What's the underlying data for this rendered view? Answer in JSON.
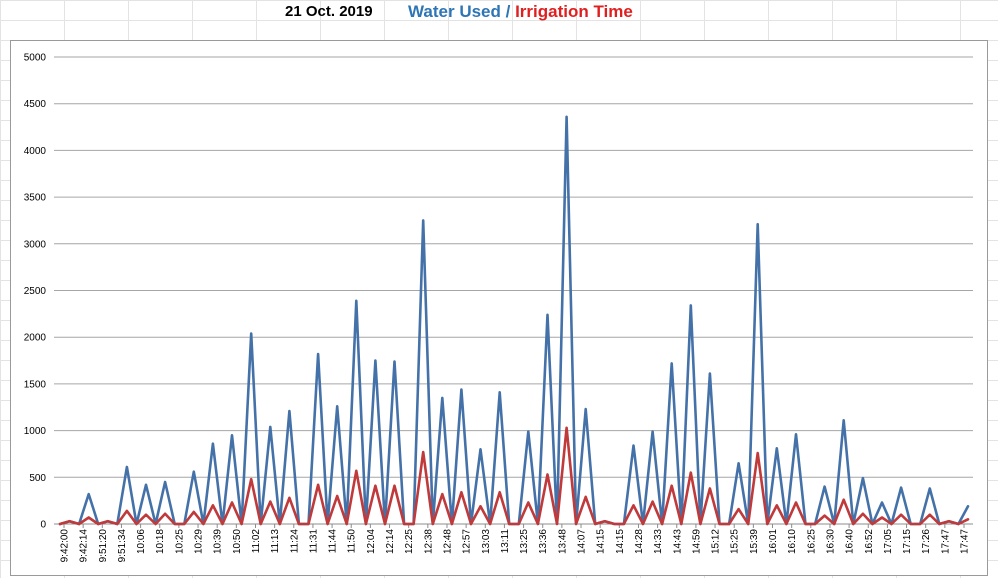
{
  "header": {
    "date": "21 Oct. 2019",
    "legend_water": "Water Used",
    "legend_sep": " / ",
    "legend_irrigation": "Irrigation Time"
  },
  "colors": {
    "water": "#4472a8",
    "irrigation": "#c0393b",
    "grid": "#a6a6a6"
  },
  "chart_data": {
    "type": "line",
    "title": "21 Oct. 2019",
    "xlabel": "",
    "ylabel": "",
    "ylim": [
      0,
      5000
    ],
    "yticks": [
      0,
      500,
      1000,
      1500,
      2000,
      2500,
      3000,
      3500,
      4000,
      4500,
      5000
    ],
    "grid": true,
    "legend": "top",
    "x_tick_labels": [
      "9:42:00",
      "9:42:14",
      "9:51:20",
      "9:51:34",
      "10:06",
      "10:18",
      "10:25",
      "10:29",
      "10:39",
      "10:50",
      "11:02",
      "11:13",
      "11:24",
      "11:31",
      "11:44",
      "11:50",
      "12:04",
      "12:14",
      "12:25",
      "12:38",
      "12:48",
      "12:57",
      "13:03",
      "13:11",
      "13:25",
      "13:36",
      "13:48",
      "14:07",
      "14:15",
      "14:15",
      "14:28",
      "14:33",
      "14:43",
      "14:59",
      "15:12",
      "15:25",
      "15:39",
      "16:01",
      "16:10",
      "16:25",
      "16:30",
      "16:40",
      "16:52",
      "17:05",
      "17:15",
      "17:26",
      "17:47",
      "17:47"
    ],
    "series": [
      {
        "name": "Water Used",
        "values": [
          0,
          30,
          0,
          320,
          0,
          30,
          0,
          610,
          0,
          420,
          0,
          450,
          0,
          0,
          560,
          0,
          860,
          0,
          950,
          0,
          2040,
          0,
          1040,
          0,
          1210,
          0,
          0,
          1820,
          0,
          1260,
          0,
          2390,
          0,
          1750,
          0,
          1740,
          0,
          0,
          3250,
          0,
          1350,
          0,
          1440,
          0,
          800,
          0,
          1410,
          0,
          0,
          990,
          0,
          2240,
          0,
          4360,
          0,
          1230,
          0,
          30,
          0,
          0,
          840,
          0,
          990,
          0,
          1720,
          0,
          2340,
          0,
          1610,
          0,
          0,
          650,
          0,
          3210,
          0,
          810,
          0,
          960,
          0,
          0,
          400,
          0,
          1110,
          0,
          490,
          0,
          230,
          0,
          390,
          0,
          0,
          380,
          0,
          30,
          0,
          190
        ]
      },
      {
        "name": "Irrigation Time",
        "values": [
          0,
          30,
          0,
          70,
          0,
          30,
          0,
          140,
          0,
          100,
          0,
          110,
          0,
          0,
          130,
          0,
          200,
          0,
          230,
          0,
          480,
          0,
          240,
          0,
          280,
          0,
          0,
          420,
          0,
          300,
          0,
          570,
          0,
          410,
          0,
          410,
          0,
          0,
          770,
          0,
          320,
          0,
          340,
          0,
          190,
          0,
          340,
          0,
          0,
          230,
          0,
          530,
          0,
          1030,
          0,
          290,
          0,
          30,
          0,
          0,
          200,
          0,
          240,
          0,
          410,
          0,
          550,
          0,
          380,
          0,
          0,
          160,
          0,
          760,
          0,
          200,
          0,
          230,
          0,
          0,
          90,
          0,
          260,
          0,
          110,
          0,
          70,
          0,
          100,
          0,
          0,
          100,
          0,
          30,
          0,
          50
        ]
      }
    ]
  }
}
